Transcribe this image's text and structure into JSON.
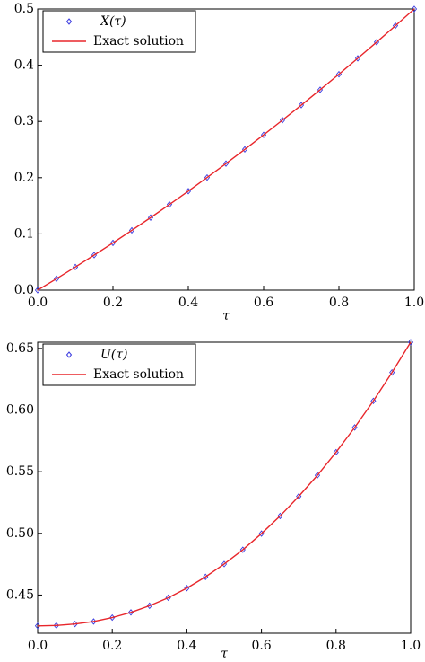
{
  "chart_data": [
    {
      "type": "line",
      "xlabel": "τ",
      "x": [
        0,
        0.05,
        0.1,
        0.15,
        0.2,
        0.25,
        0.3,
        0.35,
        0.4,
        0.45,
        0.5,
        0.55,
        0.6,
        0.65,
        0.7,
        0.75,
        0.8,
        0.85,
        0.9,
        0.95,
        1
      ],
      "series": [
        {
          "name": "X(τ)",
          "style": "markers",
          "color": "#3a3adf",
          "values": [
            0,
            0.0203,
            0.041,
            0.0623,
            0.084,
            0.1063,
            0.129,
            0.1523,
            0.176,
            0.2003,
            0.225,
            0.2503,
            0.276,
            0.3023,
            0.329,
            0.3563,
            0.384,
            0.4123,
            0.441,
            0.4703,
            0.5
          ]
        },
        {
          "name": "Exact solution",
          "style": "line",
          "color": "#e8262b",
          "values": [
            0,
            0.0203,
            0.041,
            0.0623,
            0.084,
            0.1063,
            0.129,
            0.1523,
            0.176,
            0.2003,
            0.225,
            0.2503,
            0.276,
            0.3023,
            0.329,
            0.3563,
            0.384,
            0.4123,
            0.441,
            0.4703,
            0.5
          ]
        }
      ],
      "xlim": [
        0,
        1
      ],
      "ylim": [
        0,
        0.5
      ],
      "xticks": [
        {
          "value": 0,
          "label": "0.0"
        },
        0.2,
        0.4,
        0.6,
        0.8,
        {
          "value": 1,
          "label": "1.0"
        }
      ],
      "yticks": [
        {
          "value": 0,
          "label": "0.0"
        },
        0.1,
        0.2,
        0.3,
        0.4,
        0.5
      ],
      "legend": "upper-left"
    },
    {
      "type": "line",
      "xlabel": "τ",
      "x": [
        0,
        0.05,
        0.1,
        0.15,
        0.2,
        0.25,
        0.3,
        0.35,
        0.4,
        0.45,
        0.5,
        0.55,
        0.6,
        0.65,
        0.7,
        0.75,
        0.8,
        0.85,
        0.9,
        0.95,
        1
      ],
      "series": [
        {
          "name": "U(τ)",
          "style": "markers",
          "color": "#3a3adf",
          "values": [
            0.425,
            0.4253,
            0.4265,
            0.4285,
            0.4317,
            0.4359,
            0.4413,
            0.4478,
            0.4556,
            0.4647,
            0.4751,
            0.4867,
            0.4998,
            0.5141,
            0.53,
            0.5471,
            0.5658,
            0.5859,
            0.6074,
            0.6305,
            0.655
          ]
        },
        {
          "name": "Exact solution",
          "style": "line",
          "color": "#e8262b",
          "values": [
            0.425,
            0.4253,
            0.4265,
            0.4285,
            0.4317,
            0.4359,
            0.4413,
            0.4478,
            0.4556,
            0.4647,
            0.4751,
            0.4867,
            0.4998,
            0.5141,
            0.53,
            0.5471,
            0.5658,
            0.5859,
            0.6074,
            0.6305,
            0.655
          ]
        }
      ],
      "xlim": [
        0,
        1
      ],
      "ylim": [
        0.419,
        0.655
      ],
      "xticks": [
        {
          "value": 0,
          "label": "0.0"
        },
        0.2,
        0.4,
        0.6,
        0.8,
        {
          "value": 1,
          "label": "1.0"
        }
      ],
      "yticks": [
        0.45,
        {
          "value": 0.5,
          "label": "0.50"
        },
        0.55,
        {
          "value": 0.6,
          "label": "0.60"
        },
        0.65
      ],
      "legend": "upper-left"
    }
  ]
}
